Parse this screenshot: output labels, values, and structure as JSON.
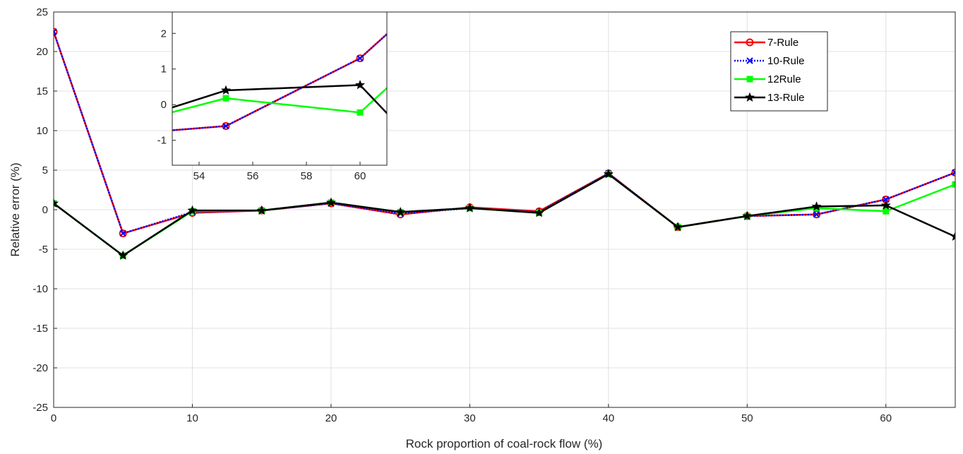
{
  "chart_data": [
    {
      "type": "line",
      "xlabel": "Rock proportion of coal-rock flow (%)",
      "ylabel": "Relative error (%)",
      "xlim": [
        0,
        65
      ],
      "ylim": [
        -25,
        25
      ],
      "xticks": [
        0,
        10,
        20,
        30,
        40,
        50,
        60
      ],
      "yticks": [
        -25,
        -20,
        -15,
        -10,
        -5,
        0,
        5,
        10,
        15,
        20,
        25
      ],
      "grid": true,
      "legend_position": "top-right",
      "x": [
        0,
        5,
        10,
        15,
        20,
        25,
        30,
        35,
        40,
        45,
        50,
        55,
        60,
        65
      ],
      "series": [
        {
          "name": "7-Rule",
          "color": "#ff0000",
          "marker": "circle",
          "line": "solid",
          "values": [
            22.5,
            -3.0,
            -0.4,
            -0.1,
            0.8,
            -0.6,
            0.3,
            -0.2,
            4.6,
            -2.2,
            -0.8,
            -0.6,
            1.3,
            4.7
          ]
        },
        {
          "name": "10-Rule",
          "color": "#0000ff",
          "marker": "x",
          "line": "dotted",
          "values": [
            22.5,
            -3.0,
            -0.3,
            -0.1,
            0.8,
            -0.5,
            0.2,
            -0.3,
            4.6,
            -2.2,
            -0.8,
            -0.6,
            1.3,
            4.7
          ]
        },
        {
          "name": "12Rule",
          "color": "#00ff00",
          "marker": "square",
          "line": "solid",
          "values": [
            0.8,
            -5.8,
            -0.2,
            -0.1,
            0.9,
            -0.3,
            0.2,
            -0.4,
            4.5,
            -2.2,
            -0.8,
            0.2,
            -0.2,
            3.2
          ]
        },
        {
          "name": "13-Rule",
          "color": "#000000",
          "marker": "star",
          "line": "solid",
          "values": [
            0.8,
            -5.8,
            -0.1,
            -0.1,
            0.9,
            -0.3,
            0.2,
            -0.4,
            4.5,
            -2.2,
            -0.8,
            0.4,
            0.55,
            -3.4
          ]
        }
      ]
    },
    {
      "type": "line",
      "role": "inset",
      "xlim": [
        53,
        61
      ],
      "ylim": [
        -1.7,
        2.6
      ],
      "xticks": [
        54,
        56,
        58,
        60
      ],
      "yticks": [
        -1,
        0,
        1,
        2
      ],
      "grid": false,
      "x": [
        50,
        55,
        60,
        65
      ],
      "series": [
        {
          "name": "7-Rule",
          "color": "#ff0000",
          "marker": "circle",
          "line": "solid",
          "values": [
            -0.9,
            -0.6,
            1.3,
            4.7
          ]
        },
        {
          "name": "10-Rule",
          "color": "#0000ff",
          "marker": "x",
          "line": "dotted",
          "values": [
            -0.9,
            -0.6,
            1.3,
            4.7
          ]
        },
        {
          "name": "12Rule",
          "color": "#00ff00",
          "marker": "square",
          "line": "solid",
          "values": [
            -0.8,
            0.18,
            -0.22,
            3.2
          ]
        },
        {
          "name": "13-Rule",
          "color": "#000000",
          "marker": "star",
          "line": "solid",
          "values": [
            -0.8,
            0.4,
            0.55,
            -3.4
          ]
        }
      ]
    }
  ]
}
